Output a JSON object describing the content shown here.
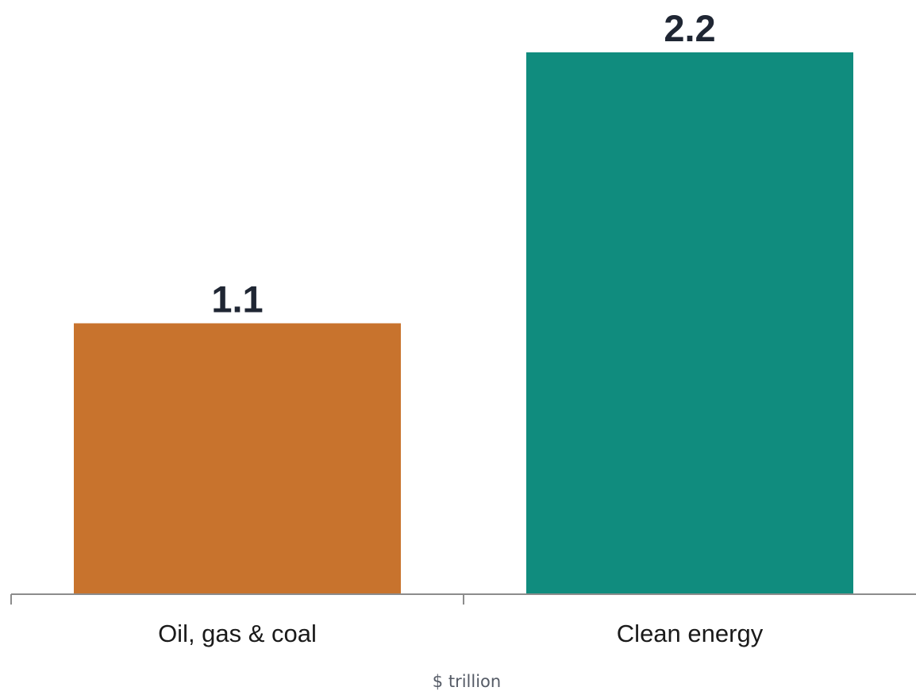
{
  "chart_data": {
    "type": "bar",
    "categories": [
      "Oil, gas & coal",
      "Clean energy"
    ],
    "values": [
      1.1,
      2.2
    ],
    "value_labels": [
      "1.1",
      "2.2"
    ],
    "colors": [
      "#c8732d",
      "#108c7e"
    ],
    "axis_color": "#8c8c8c",
    "xlabel": "$ trillion",
    "ylabel": "",
    "title": "",
    "ylim": [
      0,
      2.2
    ],
    "grid": false,
    "legend": "none"
  }
}
